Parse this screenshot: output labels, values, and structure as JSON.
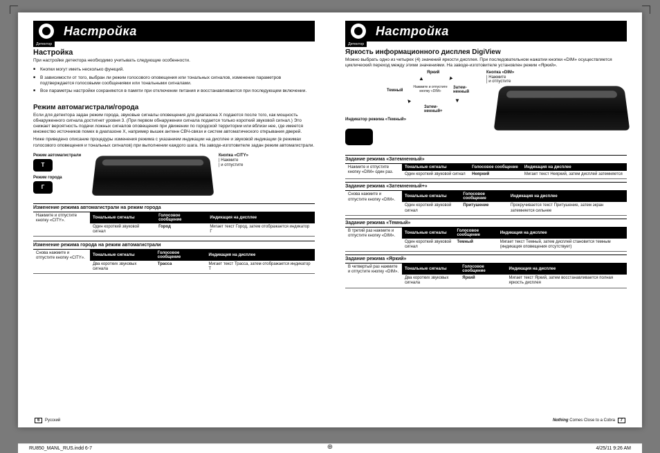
{
  "chrome": {
    "header_title": "Настройка",
    "header_tab": "Детектор"
  },
  "left": {
    "h2": "Настройка",
    "intro": "При настройке детектора необходимо учитывать следующие особенности.",
    "bullets": [
      "Кнопки могут иметь несколько функций.",
      "В зависимости от того, выбран ли режим голосового оповещения или тональных сигналов, изменение параметров подтверждается голосовыми сообщениями или тональными сигналами.",
      "Все параметры настройки сохраняются в памяти при отключении питания и восстанавливаются при последующем включении."
    ],
    "h3": "Режим автомагистрали/города",
    "p1": "Если для детектора задан режим города, звуковые сигналы оповещения для диапазона X подаются после того, как мощность обнаруженного сигнала достигнет уровня 3. (При первом обнаружении сигнала подается только короткий звуковой сигнал.) Это снижает вероятность подачи ложных сигналов оповещения при движении по городской территории или вблизи нее, где имеется множество источников помех в диапазоне X, например вышек антенн СВЧ-связи и систем автоматического открывания дверей.",
    "p2": "Ниже приведено описание процедуры изменения режима с указанием индикации на дисплее и звуковой индикации (в режимах голосового оповещения и тональных сигналов) при выполнении каждого шага. На заводе-изготовителе задан режим автомагистрали.",
    "mode_a": "Режим автомагистрали",
    "mode_b": "Режим города",
    "chip_a": "T",
    "chip_b": "Г",
    "btn_title": "Кнопка «CITY»",
    "btn_sub1": "Нажмите",
    "btn_sub2": "и отпустите",
    "tbl1_title": "Изменение режима автомагистрали на режим города",
    "tbl2_title": "Изменение режима города на режим автомагистрали",
    "headers": {
      "col1": "Тональные сигналы",
      "col2": "Голосовое сообщение",
      "col3": "Индикация на дисплее"
    },
    "tbl1": {
      "action": "Нажмите и отпустите кнопку «CITY».",
      "c1": "Один короткий звуковой сигнал",
      "c2": "Город",
      "c3": "Мигает текст Город, затем отображается индикатор Г"
    },
    "tbl2": {
      "action": "Снова нажмите и отпустите кнопку «CITY».",
      "c1": "Два коротких звуковых сигнала",
      "c2": "Трасса",
      "c3": "Мигает текст Трасса, затем отображается индикатор T"
    },
    "foot_pg": "6",
    "foot_txt": "Русский"
  },
  "right": {
    "h2": "Яркость информационного дисплея DigiView",
    "intro": "Можно выбрать одно из четырех (4) значений яркости дисплея. При последовательном нажатии кнопки «DIM» осуществляется циклический переход между этими значениями. На заводе-изготовителе установлен режим «Яркий».",
    "diag": {
      "top": "Яркий",
      "left": "Темный",
      "right1": "Затем-",
      "right1b": "ненный",
      "bottom1": "Затем-",
      "bottom1b": "ненный+",
      "note": "Нажмите и отпустите кнопку «DIM»",
      "btn": "Кнопка «DIM»",
      "btn_s1": "Нажмите",
      "btn_s2": "и отпустите",
      "ind": "Индикатор режима «Темный»"
    },
    "headers": {
      "col1": "Тональные сигналы",
      "col2": "Голосовое сообщение",
      "col3": "Индикация на дисплее"
    },
    "sections": [
      {
        "title": "Задание режима «Затемненный»",
        "action": "Нажмите и отпустите кнопку «DIM» один раз.",
        "c1": "Один короткий звуковой сигнал",
        "c2": "Неяркий",
        "c3": "Мигает текст Неяркий, затем дисплей затемняется"
      },
      {
        "title": "Задание режима «Затемненный+»",
        "action": "Снова нажмите и отпустите кнопку «DIM».",
        "c1": "Один короткий звуковой сигнал",
        "c2": "Притушение",
        "c3": "Прокручивается текст Притушение, затем экран затемняется сильнее"
      },
      {
        "title": "Задание режима «Темный»",
        "action": "В третий раз нажмите и отпустите кнопку «DIM».",
        "c1": "Один короткий звуковой сигнал",
        "c2": "Темный",
        "c3": "Мигает текст Темный, затем дисплей становится темным (индикация оповещения отсутствует)"
      },
      {
        "title": "Задание режима «Яркий»",
        "action": "В четвертый раз нажмите и отпустите кнопку «DIM».",
        "c1": "Два коротких звуковых сигнала",
        "c2": "Яркий",
        "c3": "Мигает текст Яркий, затем восстанавливается полная яркость дисплея"
      }
    ],
    "foot_pg": "7",
    "foot_txt": "Nothing Comes Close to a Cobra"
  },
  "indd": {
    "file": "RU850_MANL_RUS.indd   6-7",
    "stamp": "4/25/11   9:26 AM"
  }
}
